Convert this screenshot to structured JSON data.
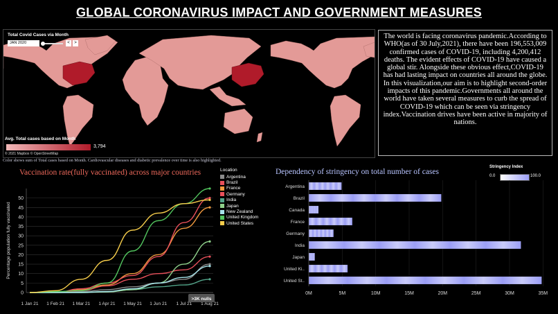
{
  "page": {
    "title": "GLOBAL CORONAVIRUS IMPACT AND GOVERNMENT MEASURES"
  },
  "map": {
    "control_title": "Total Covid Cases via Month",
    "month_value": "JAN 2020",
    "prev_label": "<",
    "next_label": ">",
    "legend_title": "Avg. Total cases based on Month",
    "legend_max": "3,794",
    "credit": "© 2021 Mapbox © OpenStreetMap",
    "land_color": "#e39a97",
    "highlight_color": "#b01b2a",
    "highlighted_country": "China"
  },
  "summary_text": "The world is facing coronavirus pandemic.According to WHO(as of 30 July,2021), there have been 196,553,009 confirmed cases of COVID-19, including 4,200,412 deaths. The evident effects of COVID-19 have caused a global stir. Alongside these obvious effect,COVID-19 has had lasting impact on countries all around the globe. In this visualization,our aim is to highlight second-order impacts of this pandemic.Governments all around the world have taken several measures to curb the spread of COVID-19 which can be seen via stringency index.Vaccination drives have been active in majority of nations.",
  "caption": "Color shows sum of Total cases based on Month. Cardiovascular diseases and diabetic prevalence over time is also highlighted.",
  "chart_data": [
    {
      "type": "line",
      "title": "Vaccination rate(fully vaccinated) across major countries",
      "xlabel": "",
      "ylabel": "Percentage population fully vaccinated",
      "x_ticks": [
        "1 Jan 21",
        "1 Feb 21",
        "1 Mar 21",
        "1 Apr 21",
        "1 May 21",
        "1 Jun 21",
        "1 Jul 21",
        "1 Aug 21"
      ],
      "x": [
        "1 Jan 21",
        "1 Feb 21",
        "1 Mar 21",
        "1 Apr 21",
        "1 May 21",
        "1 Jun 21",
        "1 Jul 21",
        "1 Aug 21"
      ],
      "ylim": [
        0,
        55
      ],
      "y_ticks": [
        0,
        5,
        10,
        15,
        20,
        25,
        30,
        35,
        40,
        45,
        50
      ],
      "legend_title": "Location",
      "null_badge": ">3K nulls",
      "series": [
        {
          "name": "Argentina",
          "color": "#8c8c8c",
          "values": [
            0,
            0,
            0.5,
            1.5,
            3,
            5,
            7,
            15
          ]
        },
        {
          "name": "Brazil",
          "color": "#e8505b",
          "values": [
            0,
            0,
            1,
            3.5,
            7,
            10,
            12,
            19
          ]
        },
        {
          "name": "France",
          "color": "#f29a3f",
          "values": [
            0,
            0,
            1.5,
            4,
            10,
            20,
            34,
            45
          ]
        },
        {
          "name": "Germany",
          "color": "#e8505b",
          "values": [
            0,
            0,
            2,
            5,
            9,
            19,
            37,
            50
          ]
        },
        {
          "name": "India",
          "color": "#53a58a",
          "values": [
            0,
            0,
            0.2,
            0.5,
            1.5,
            3,
            4,
            7
          ]
        },
        {
          "name": "Japan",
          "color": "#8fd18b",
          "values": [
            0,
            0,
            0,
            0.3,
            1.5,
            5,
            15,
            27
          ]
        },
        {
          "name": "New Zealand",
          "color": "#a6e3ea",
          "values": [
            0,
            0,
            0,
            0.5,
            2,
            5,
            8,
            14
          ]
        },
        {
          "name": "United Kingdom",
          "color": "#52c45e",
          "values": [
            0,
            0.5,
            1,
            5,
            22,
            38,
            47,
            55
          ]
        },
        {
          "name": "United States",
          "color": "#f5cc4b",
          "values": [
            0,
            1,
            7,
            17,
            33,
            42,
            47,
            49
          ]
        }
      ]
    },
    {
      "type": "bar",
      "title": "Dependency of stringency on total number of cases",
      "orientation": "horizontal",
      "categories": [
        "Argentina",
        "Brazil",
        "Canada",
        "France",
        "Germany",
        "India",
        "Japan",
        "United Ki..",
        "United St.."
      ],
      "values": [
        4900000,
        19800000,
        1450000,
        6500000,
        3700000,
        31700000,
        900000,
        5800000,
        34800000
      ],
      "x_ticks": [
        "0M",
        "5M",
        "10M",
        "15M",
        "20M",
        "25M",
        "30M",
        "35M"
      ],
      "xlim": [
        0,
        36000000
      ],
      "legend_title": "Stringency Index",
      "legend_min": "0.0",
      "legend_max": "100.0",
      "color_low": "#ffffff",
      "color_high": "#9b9ef5"
    }
  ]
}
